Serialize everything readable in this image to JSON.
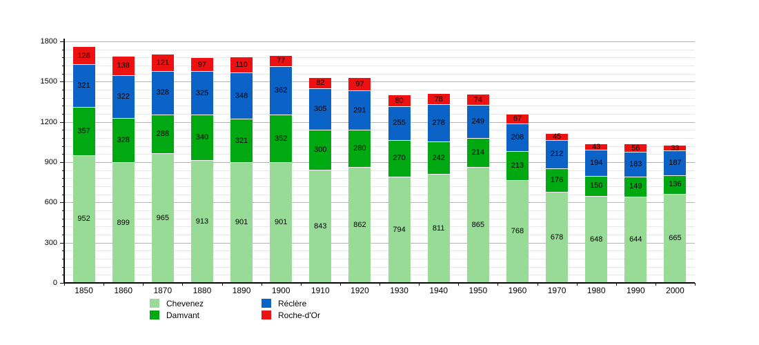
{
  "chart_data": {
    "type": "bar",
    "stacked": true,
    "title": "",
    "xlabel": "",
    "ylabel": "",
    "categories": [
      "1850",
      "1860",
      "1870",
      "1880",
      "1890",
      "1900",
      "1910",
      "1920",
      "1930",
      "1940",
      "1950",
      "1960",
      "1970",
      "1980",
      "1990",
      "2000"
    ],
    "series": [
      {
        "name": "Chevenez",
        "color": "#97db97",
        "values": [
          952,
          899,
          965,
          913,
          901,
          901,
          843,
          862,
          794,
          811,
          865,
          768,
          678,
          648,
          644,
          665
        ]
      },
      {
        "name": "Damvant",
        "color": "#00a911",
        "values": [
          357,
          328,
          288,
          340,
          321,
          352,
          300,
          280,
          270,
          242,
          214,
          213,
          176,
          150,
          149,
          136
        ]
      },
      {
        "name": "Réclère",
        "color": "#0b63c8",
        "values": [
          321,
          322,
          328,
          325,
          348,
          362,
          305,
          291,
          255,
          278,
          249,
          208,
          212,
          194,
          183,
          187
        ]
      },
      {
        "name": "Roche-d'Or",
        "color": "#ee1111",
        "values": [
          128,
          138,
          121,
          97,
          110,
          77,
          82,
          97,
          80,
          78,
          74,
          67,
          45,
          43,
          56,
          33
        ]
      }
    ],
    "ylim": [
      0,
      1800
    ],
    "ytick_step": 300,
    "yminor_step": 60,
    "ytick_labels": [
      "0",
      "300",
      "600",
      "900",
      "1200",
      "1500",
      "1800"
    ],
    "grid": true,
    "legend_position": "bottom",
    "legend_order": [
      "Chevenez",
      "Damvant",
      "Réclère",
      "Roche-d'Or"
    ]
  }
}
